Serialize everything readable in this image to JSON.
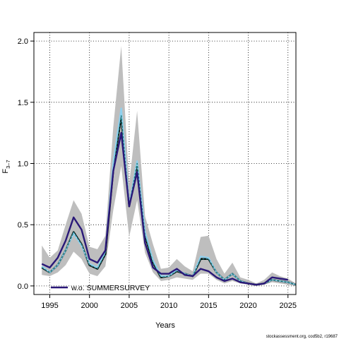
{
  "chart_data": {
    "type": "line",
    "xlabel": "Years",
    "ylabel_main": "F",
    "ylabel_sub": "3–7",
    "xlim": [
      1993,
      2026
    ],
    "ylim": [
      -0.07,
      2.07
    ],
    "x_ticks": [
      1995,
      2000,
      2005,
      2010,
      2015,
      2020,
      2025
    ],
    "x_tick_labels": [
      "1995",
      "2000",
      "2005",
      "2010",
      "2015",
      "2020",
      "2025"
    ],
    "y_ticks": [
      0,
      0.5,
      1,
      1.5,
      2
    ],
    "y_tick_labels": [
      "0.0",
      "0.5",
      "1.0",
      "1.5",
      "2.0"
    ],
    "grid": true,
    "legend": {
      "position": "bottom-left",
      "label": "w.o. SUMMERSURVEY"
    },
    "watermark": "stockassessment.org, cod5b2, r19687",
    "colors": {
      "band": "#bebebe",
      "estimate": "#1f7a7a",
      "light": "#8fd0ee",
      "alt": "#2a1878"
    },
    "x": [
      1994,
      1995,
      1996,
      1997,
      1998,
      1999,
      2000,
      2001,
      2002,
      2003,
      2004,
      2005,
      2006,
      2007,
      2008,
      2009,
      2010,
      2011,
      2012,
      2013,
      2014,
      2015,
      2016,
      2017,
      2018,
      2019,
      2020,
      2021,
      2022,
      2023,
      2024,
      2025,
      2026
    ],
    "series": [
      {
        "role": "band",
        "lower": [
          0.09,
          0.08,
          0.11,
          0.17,
          0.28,
          0.22,
          0.1,
          0.08,
          0.16,
          0.62,
          0.98,
          0.4,
          0.7,
          0.27,
          0.11,
          0.04,
          0.05,
          0.07,
          0.06,
          0.05,
          0.1,
          0.1,
          0.05,
          0.02,
          0.04,
          0.02,
          0.01,
          0.0,
          0.01,
          0.03,
          0.02,
          0.01,
          0.0
        ],
        "upper": [
          0.33,
          0.23,
          0.29,
          0.5,
          0.7,
          0.59,
          0.32,
          0.3,
          0.41,
          1.3,
          1.96,
          0.83,
          1.43,
          0.57,
          0.34,
          0.14,
          0.15,
          0.22,
          0.16,
          0.12,
          0.4,
          0.41,
          0.22,
          0.1,
          0.19,
          0.07,
          0.05,
          0.02,
          0.05,
          0.11,
          0.08,
          0.06,
          0.02
        ]
      },
      {
        "role": "estimate",
        "values": [
          0.15,
          0.11,
          0.17,
          0.29,
          0.44,
          0.34,
          0.17,
          0.14,
          0.26,
          0.95,
          1.39,
          0.65,
          1.0,
          0.41,
          0.19,
          0.07,
          0.08,
          0.12,
          0.1,
          0.08,
          0.22,
          0.22,
          0.11,
          0.05,
          0.1,
          0.04,
          0.02,
          0.01,
          0.02,
          0.05,
          0.04,
          0.03,
          0.01
        ]
      },
      {
        "role": "light",
        "values": [
          0.16,
          0.11,
          0.17,
          0.29,
          0.43,
          0.33,
          0.18,
          0.15,
          0.28,
          1.01,
          1.45,
          0.66,
          1.02,
          0.44,
          0.21,
          0.08,
          0.08,
          0.13,
          0.1,
          0.08,
          0.24,
          0.23,
          0.11,
          0.05,
          0.1,
          0.04,
          0.02,
          0.01,
          0.02,
          0.05,
          0.04,
          0.03,
          0.01
        ]
      },
      {
        "role": "alt",
        "name": "w.o. SUMMERSURVEY",
        "values": [
          0.18,
          0.15,
          0.23,
          0.37,
          0.56,
          0.46,
          0.22,
          0.19,
          0.29,
          0.94,
          1.25,
          0.65,
          0.93,
          0.35,
          0.15,
          0.1,
          0.1,
          0.14,
          0.09,
          0.08,
          0.14,
          0.12,
          0.07,
          0.04,
          0.06,
          0.03,
          0.02,
          0.01,
          0.02,
          0.07,
          0.06,
          0.05,
          null
        ]
      }
    ]
  }
}
